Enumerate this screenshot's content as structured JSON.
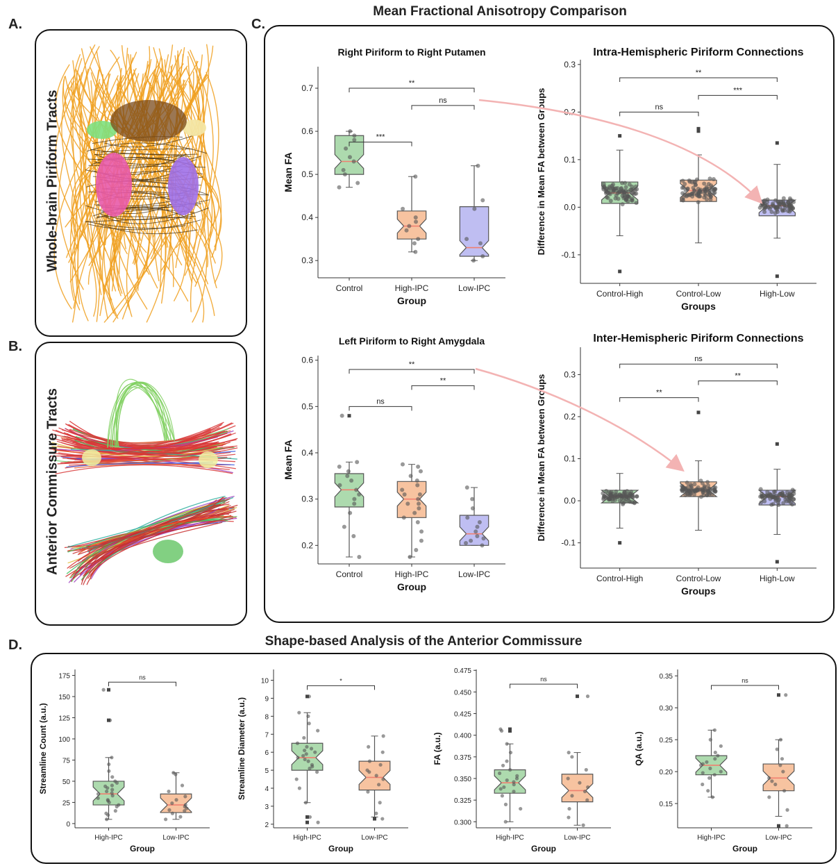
{
  "panels": {
    "A": {
      "letter": "A.",
      "label": "Whole-brain Piriform Tracts"
    },
    "B": {
      "letter": "B.",
      "label": "Anterior Commissure Tracts"
    },
    "C": {
      "letter": "C.",
      "title": "Mean Fractional Anisotropy Comparison"
    },
    "D": {
      "letter": "D.",
      "title": "Shape-based Analysis of the Anterior Commissure"
    }
  },
  "colors": {
    "green": "#9fd3a0",
    "orange": "#f6b88f",
    "purple": "#b4b3f0",
    "median": "#f08070",
    "arrow": "#f3b3b3",
    "tract": "#f0a020"
  },
  "chart_data": [
    {
      "id": "c1",
      "type": "box",
      "title": "Right Piriform to Right Putamen",
      "xlabel": "Group",
      "ylabel": "Mean FA",
      "ylim": [
        0.26,
        0.75
      ],
      "yticks": [
        0.3,
        0.4,
        0.5,
        0.6,
        0.7
      ],
      "dec": 1,
      "categories": [
        "Control",
        "High-IPC",
        "Low-IPC"
      ],
      "boxes": [
        {
          "q1": 0.5,
          "med": 0.53,
          "q3": 0.59,
          "wlo": 0.47,
          "whi": 0.6,
          "color": "green",
          "points": [
            0.47,
            0.48,
            0.5,
            0.51,
            0.53,
            0.54,
            0.56,
            0.58,
            0.59,
            0.6
          ]
        },
        {
          "q1": 0.35,
          "med": 0.38,
          "q3": 0.415,
          "wlo": 0.32,
          "whi": 0.495,
          "color": "orange",
          "points": [
            0.32,
            0.34,
            0.35,
            0.37,
            0.38,
            0.39,
            0.4,
            0.42,
            0.495
          ]
        },
        {
          "q1": 0.31,
          "med": 0.33,
          "q3": 0.425,
          "wlo": 0.3,
          "whi": 0.52,
          "color": "purple",
          "points": [
            0.3,
            0.31,
            0.34,
            0.35,
            0.42,
            0.44,
            0.52
          ]
        }
      ],
      "sig": [
        {
          "a": 0,
          "b": 1,
          "y": 0.575,
          "text": "***"
        },
        {
          "a": 1,
          "b": 2,
          "y": 0.66,
          "text": "ns"
        },
        {
          "a": 0,
          "b": 2,
          "y": 0.7,
          "text": "**"
        }
      ]
    },
    {
      "id": "c2",
      "type": "box",
      "title": "Intra-Hemispheric Piriform Connections",
      "xlabel": "Groups",
      "ylabel": "Difference in Mean FA between Groups",
      "ylim": [
        -0.16,
        0.31
      ],
      "yticks": [
        -0.1,
        0.0,
        0.1,
        0.2,
        0.3
      ],
      "dec": 1,
      "categories": [
        "Control-High",
        "Control-Low",
        "High-Low"
      ],
      "boxes": [
        {
          "q1": 0.008,
          "med": 0.03,
          "q3": 0.053,
          "wlo": -0.06,
          "whi": 0.12,
          "color": "green",
          "n": 80,
          "out": [
            -0.135,
            0.15
          ]
        },
        {
          "q1": 0.012,
          "med": 0.035,
          "q3": 0.057,
          "wlo": -0.075,
          "whi": 0.11,
          "color": "orange",
          "n": 80,
          "out": [
            0.16,
            0.165
          ]
        },
        {
          "q1": -0.018,
          "med": 0.003,
          "q3": 0.015,
          "wlo": -0.065,
          "whi": 0.09,
          "color": "purple",
          "n": 80,
          "out": [
            -0.145,
            0.135
          ]
        }
      ],
      "sig": [
        {
          "a": 0,
          "b": 1,
          "y": 0.2,
          "text": "ns"
        },
        {
          "a": 1,
          "b": 2,
          "y": 0.235,
          "text": "***"
        },
        {
          "a": 0,
          "b": 2,
          "y": 0.272,
          "text": "**"
        }
      ]
    },
    {
      "id": "c3",
      "type": "box",
      "title": "Left Piriform to Right Amygdala",
      "xlabel": "Group",
      "ylabel": "Mean FA",
      "ylim": [
        0.16,
        0.61
      ],
      "yticks": [
        0.2,
        0.3,
        0.4,
        0.5,
        0.6
      ],
      "dec": 1,
      "categories": [
        "Control",
        "High-IPC",
        "Low-IPC"
      ],
      "boxes": [
        {
          "q1": 0.283,
          "med": 0.32,
          "q3": 0.355,
          "wlo": 0.175,
          "whi": 0.38,
          "color": "green",
          "points": [
            0.175,
            0.22,
            0.24,
            0.27,
            0.29,
            0.3,
            0.31,
            0.32,
            0.33,
            0.34,
            0.35,
            0.36,
            0.37,
            0.38,
            0.48
          ]
        },
        {
          "q1": 0.26,
          "med": 0.3,
          "q3": 0.338,
          "wlo": 0.175,
          "whi": 0.375,
          "color": "orange",
          "points": [
            0.175,
            0.19,
            0.21,
            0.23,
            0.25,
            0.26,
            0.27,
            0.28,
            0.29,
            0.3,
            0.31,
            0.32,
            0.33,
            0.34,
            0.35,
            0.36,
            0.37,
            0.375,
            0.31,
            0.29
          ]
        },
        {
          "q1": 0.2,
          "med": 0.225,
          "q3": 0.265,
          "wlo": 0.2,
          "whi": 0.325,
          "color": "purple",
          "points": [
            0.2,
            0.205,
            0.21,
            0.22,
            0.23,
            0.24,
            0.25,
            0.26,
            0.28,
            0.3,
            0.325,
            0.215
          ]
        }
      ],
      "sig": [
        {
          "a": 0,
          "b": 1,
          "y": 0.5,
          "text": "ns"
        },
        {
          "a": 1,
          "b": 2,
          "y": 0.545,
          "text": "**"
        },
        {
          "a": 0,
          "b": 2,
          "y": 0.58,
          "text": "**"
        }
      ]
    },
    {
      "id": "c4",
      "type": "box",
      "title": "Inter-Hemispheric Piriform Connections",
      "xlabel": "Groups",
      "ylabel": "Difference in Mean FA between Groups",
      "ylim": [
        -0.16,
        0.365
      ],
      "yticks": [
        -0.1,
        0.0,
        0.1,
        0.2,
        0.3
      ],
      "dec": 1,
      "categories": [
        "Control-High",
        "Control-Low",
        "High-Low"
      ],
      "boxes": [
        {
          "q1": -0.005,
          "med": 0.01,
          "q3": 0.025,
          "wlo": -0.065,
          "whi": 0.065,
          "color": "green",
          "n": 80,
          "out": [
            -0.1
          ]
        },
        {
          "q1": 0.01,
          "med": 0.025,
          "q3": 0.045,
          "wlo": -0.07,
          "whi": 0.095,
          "color": "orange",
          "n": 80,
          "out": [
            0.21
          ]
        },
        {
          "q1": -0.01,
          "med": 0.01,
          "q3": 0.025,
          "wlo": -0.08,
          "whi": 0.075,
          "color": "purple",
          "n": 80,
          "out": [
            -0.145,
            0.135
          ]
        }
      ],
      "sig": [
        {
          "a": 0,
          "b": 1,
          "y": 0.245,
          "text": "**"
        },
        {
          "a": 1,
          "b": 2,
          "y": 0.285,
          "text": "**"
        },
        {
          "a": 0,
          "b": 2,
          "y": 0.325,
          "text": "ns"
        }
      ]
    },
    {
      "id": "d1",
      "type": "box",
      "title": "",
      "xlabel": "Group",
      "ylabel": "Streamline Count (a.u.)",
      "ylim": [
        -5,
        182
      ],
      "yticks": [
        0,
        25,
        50,
        75,
        100,
        125,
        150,
        175
      ],
      "dec": 0,
      "categories": [
        "High-IPC",
        "Low-IPC"
      ],
      "boxes": [
        {
          "q1": 22,
          "med": 35,
          "q3": 50,
          "wlo": 5,
          "whi": 78,
          "color": "green",
          "points": [
            5,
            10,
            15,
            20,
            22,
            25,
            28,
            30,
            33,
            35,
            38,
            40,
            42,
            45,
            48,
            50,
            55,
            62,
            70,
            78,
            122,
            158,
            12,
            27,
            36,
            44
          ]
        },
        {
          "q1": 13,
          "med": 22,
          "q3": 35,
          "wlo": 5,
          "whi": 60,
          "color": "orange",
          "points": [
            5,
            8,
            12,
            15,
            18,
            20,
            22,
            24,
            28,
            32,
            38,
            45,
            58,
            60,
            16
          ]
        }
      ],
      "sig": [
        {
          "a": 0,
          "b": 1,
          "y": 167,
          "text": "ns"
        }
      ]
    },
    {
      "id": "d2",
      "type": "box",
      "title": "",
      "xlabel": "Group",
      "ylabel": "Streamline Diameter (a.u.)",
      "ylim": [
        1.8,
        10.6
      ],
      "yticks": [
        2,
        3,
        4,
        5,
        6,
        7,
        8,
        9,
        10
      ],
      "dec": 0,
      "categories": [
        "High-IPC",
        "Low-IPC"
      ],
      "boxes": [
        {
          "q1": 5.0,
          "med": 5.7,
          "q3": 6.5,
          "wlo": 3.2,
          "whi": 8.2,
          "color": "green",
          "points": [
            2.1,
            2.4,
            3.2,
            4.0,
            4.5,
            4.9,
            5.1,
            5.3,
            5.5,
            5.6,
            5.7,
            5.9,
            6.0,
            6.2,
            6.3,
            6.5,
            6.8,
            7.2,
            7.6,
            8.0,
            8.2,
            9.1,
            5.8,
            6.1,
            5.2
          ]
        },
        {
          "q1": 3.9,
          "med": 4.6,
          "q3": 5.5,
          "wlo": 2.4,
          "whi": 6.9,
          "color": "orange",
          "points": [
            2.3,
            2.6,
            3.2,
            3.8,
            4.2,
            4.5,
            4.7,
            5.0,
            5.3,
            5.5,
            6.0,
            6.3,
            6.9,
            4.9
          ]
        }
      ],
      "sig": [
        {
          "a": 0,
          "b": 1,
          "y": 9.7,
          "text": "*"
        }
      ]
    },
    {
      "id": "d3",
      "type": "box",
      "title": "",
      "xlabel": "Group",
      "ylabel": "FA (a.u.)",
      "ylim": [
        0.293,
        0.476
      ],
      "yticks": [
        0.3,
        0.325,
        0.35,
        0.375,
        0.4,
        0.425,
        0.45,
        0.475
      ],
      "dec": 3,
      "categories": [
        "High-IPC",
        "Low-IPC"
      ],
      "boxes": [
        {
          "q1": 0.333,
          "med": 0.345,
          "q3": 0.36,
          "wlo": 0.3,
          "whi": 0.39,
          "color": "green",
          "points": [
            0.3,
            0.315,
            0.32,
            0.33,
            0.335,
            0.34,
            0.343,
            0.346,
            0.35,
            0.353,
            0.356,
            0.36,
            0.365,
            0.37,
            0.38,
            0.39,
            0.405,
            0.407,
            0.338,
            0.348
          ]
        },
        {
          "q1": 0.323,
          "med": 0.336,
          "q3": 0.355,
          "wlo": 0.296,
          "whi": 0.38,
          "color": "orange",
          "points": [
            0.296,
            0.305,
            0.315,
            0.325,
            0.33,
            0.335,
            0.34,
            0.345,
            0.35,
            0.36,
            0.375,
            0.38,
            0.445
          ]
        }
      ],
      "sig": [
        {
          "a": 0,
          "b": 1,
          "y": 0.459,
          "text": "ns"
        }
      ]
    },
    {
      "id": "d4",
      "type": "box",
      "title": "",
      "xlabel": "Group",
      "ylabel": "QA (a.u.)",
      "ylim": [
        0.112,
        0.36
      ],
      "yticks": [
        0.15,
        0.2,
        0.25,
        0.3,
        0.35
      ],
      "dec": 2,
      "categories": [
        "High-IPC",
        "Low-IPC"
      ],
      "boxes": [
        {
          "q1": 0.195,
          "med": 0.21,
          "q3": 0.225,
          "wlo": 0.16,
          "whi": 0.265,
          "color": "green",
          "points": [
            0.16,
            0.17,
            0.18,
            0.19,
            0.195,
            0.2,
            0.205,
            0.21,
            0.215,
            0.22,
            0.225,
            0.23,
            0.24,
            0.25,
            0.265,
            0.212,
            0.198
          ]
        },
        {
          "q1": 0.17,
          "med": 0.19,
          "q3": 0.212,
          "wlo": 0.13,
          "whi": 0.25,
          "color": "orange",
          "points": [
            0.115,
            0.14,
            0.16,
            0.17,
            0.18,
            0.185,
            0.19,
            0.2,
            0.21,
            0.22,
            0.235,
            0.25,
            0.32
          ]
        }
      ],
      "sig": [
        {
          "a": 0,
          "b": 1,
          "y": 0.335,
          "text": "ns"
        }
      ]
    }
  ]
}
